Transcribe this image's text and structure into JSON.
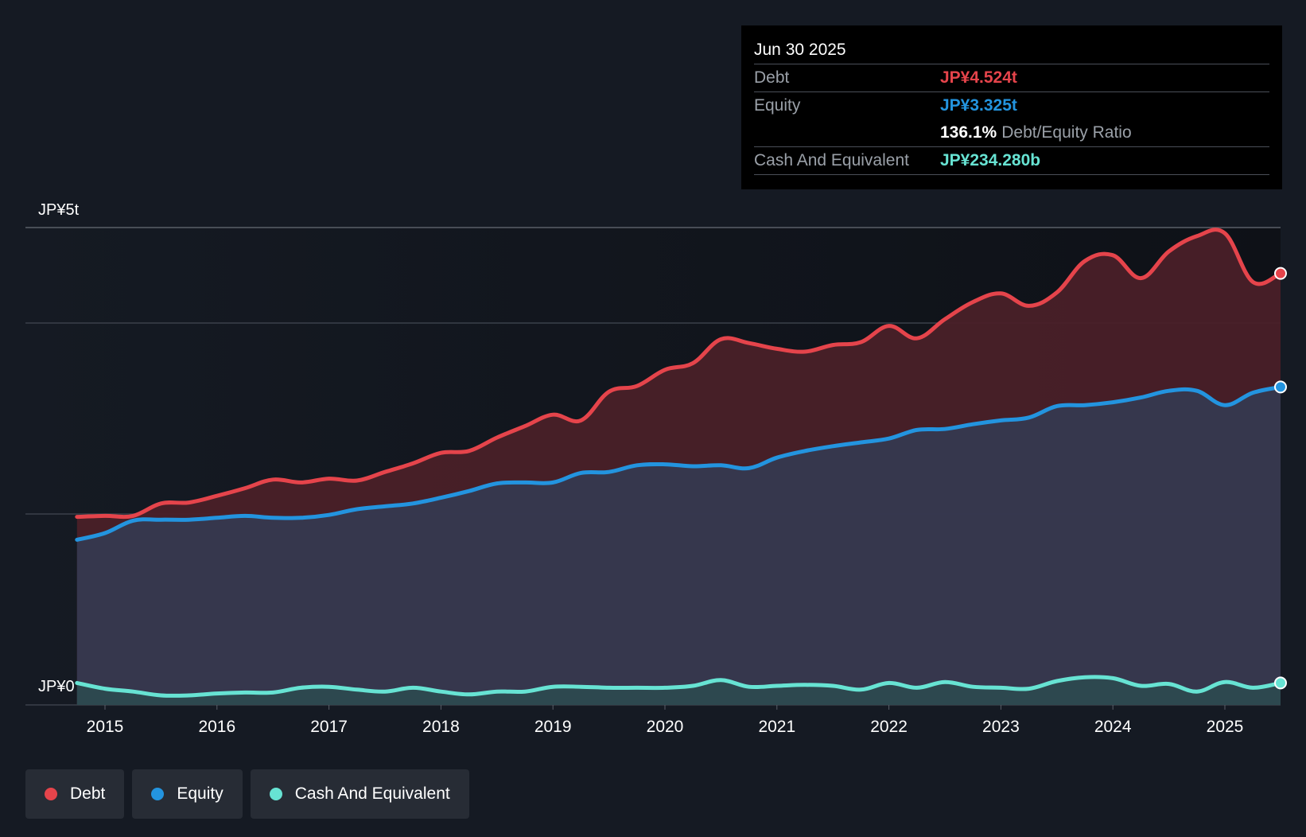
{
  "colors": {
    "debt": "#e5444b",
    "equity": "#2394df",
    "cash": "#67e3d3",
    "debt_fill": "#4a2028",
    "equity_fill": "#343a52",
    "cash_fill": "#2b4b50",
    "grid": "#3b404a"
  },
  "tooltip": {
    "date": "Jun 30 2025",
    "debt_label": "Debt",
    "debt_value": "JP¥4.524t",
    "equity_label": "Equity",
    "equity_value": "JP¥3.325t",
    "ratio_value": "136.1%",
    "ratio_label": "Debt/Equity Ratio",
    "cash_label": "Cash And Equivalent",
    "cash_value": "JP¥234.280b"
  },
  "legend": {
    "items": [
      {
        "label": "Debt",
        "icon": "dot-icon",
        "color": "#e5444b"
      },
      {
        "label": "Equity",
        "icon": "dot-icon",
        "color": "#2394df"
      },
      {
        "label": "Cash And Equivalent",
        "icon": "dot-icon",
        "color": "#67e3d3"
      }
    ]
  },
  "chart_data": {
    "type": "area",
    "title": "",
    "xlabel": "",
    "ylabel": "",
    "ylim": [
      0,
      5
    ],
    "y_unit": "JP¥ trillion",
    "y_axis_labels": {
      "top": "JP¥5t",
      "bottom": "JP¥0"
    },
    "grid": true,
    "x_tick_labels": [
      "2015",
      "2016",
      "2017",
      "2018",
      "2019",
      "2020",
      "2021",
      "2022",
      "2023",
      "2024",
      "2025"
    ],
    "x_range": [
      2014.3,
      2025.5
    ],
    "series": [
      {
        "name": "Debt",
        "x": [
          2014.75,
          2015.0,
          2015.25,
          2015.5,
          2015.75,
          2016.0,
          2016.25,
          2016.5,
          2016.75,
          2017.0,
          2017.25,
          2017.5,
          2017.75,
          2018.0,
          2018.25,
          2018.5,
          2018.75,
          2019.0,
          2019.25,
          2019.5,
          2019.75,
          2020.0,
          2020.25,
          2020.5,
          2020.75,
          2021.0,
          2021.25,
          2021.5,
          2021.75,
          2022.0,
          2022.25,
          2022.5,
          2022.75,
          2023.0,
          2023.25,
          2023.5,
          2023.75,
          2024.0,
          2024.25,
          2024.5,
          2024.75,
          2025.0,
          2025.25,
          2025.5
        ],
        "values": [
          1.97,
          1.98,
          1.98,
          2.11,
          2.12,
          2.19,
          2.27,
          2.36,
          2.33,
          2.37,
          2.35,
          2.44,
          2.53,
          2.64,
          2.66,
          2.8,
          2.92,
          3.04,
          2.98,
          3.28,
          3.34,
          3.51,
          3.58,
          3.83,
          3.79,
          3.73,
          3.7,
          3.77,
          3.8,
          3.97,
          3.84,
          4.04,
          4.22,
          4.31,
          4.18,
          4.32,
          4.65,
          4.71,
          4.47,
          4.75,
          4.91,
          4.94,
          4.43,
          4.52
        ]
      },
      {
        "name": "Equity",
        "x": [
          2014.75,
          2015.0,
          2015.25,
          2015.5,
          2015.75,
          2016.0,
          2016.25,
          2016.5,
          2016.75,
          2017.0,
          2017.25,
          2017.5,
          2017.75,
          2018.0,
          2018.25,
          2018.5,
          2018.75,
          2019.0,
          2019.25,
          2019.5,
          2019.75,
          2020.0,
          2020.25,
          2020.5,
          2020.75,
          2021.0,
          2021.25,
          2021.5,
          2021.75,
          2022.0,
          2022.25,
          2022.5,
          2022.75,
          2023.0,
          2023.25,
          2023.5,
          2023.75,
          2024.0,
          2024.25,
          2024.5,
          2024.75,
          2025.0,
          2025.25,
          2025.5
        ],
        "values": [
          1.73,
          1.8,
          1.93,
          1.94,
          1.94,
          1.96,
          1.98,
          1.96,
          1.96,
          1.99,
          2.05,
          2.08,
          2.11,
          2.17,
          2.24,
          2.32,
          2.33,
          2.33,
          2.43,
          2.44,
          2.51,
          2.52,
          2.5,
          2.51,
          2.48,
          2.59,
          2.66,
          2.71,
          2.75,
          2.79,
          2.88,
          2.89,
          2.94,
          2.98,
          3.01,
          3.13,
          3.14,
          3.17,
          3.22,
          3.29,
          3.29,
          3.14,
          3.27,
          3.33
        ]
      },
      {
        "name": "Cash And Equivalent",
        "x": [
          2014.75,
          2015.0,
          2015.25,
          2015.5,
          2015.75,
          2016.0,
          2016.25,
          2016.5,
          2016.75,
          2017.0,
          2017.25,
          2017.5,
          2017.75,
          2018.0,
          2018.25,
          2018.5,
          2018.75,
          2019.0,
          2019.25,
          2019.5,
          2019.75,
          2020.0,
          2020.25,
          2020.5,
          2020.75,
          2021.0,
          2021.25,
          2021.5,
          2021.75,
          2022.0,
          2022.25,
          2022.5,
          2022.75,
          2023.0,
          2023.25,
          2023.5,
          2023.75,
          2024.0,
          2024.25,
          2024.5,
          2024.75,
          2025.0,
          2025.25,
          2025.5
        ],
        "values": [
          0.23,
          0.17,
          0.14,
          0.1,
          0.1,
          0.12,
          0.13,
          0.13,
          0.18,
          0.19,
          0.16,
          0.14,
          0.18,
          0.14,
          0.11,
          0.14,
          0.14,
          0.19,
          0.19,
          0.18,
          0.18,
          0.18,
          0.2,
          0.26,
          0.19,
          0.2,
          0.21,
          0.2,
          0.16,
          0.23,
          0.18,
          0.24,
          0.19,
          0.18,
          0.17,
          0.25,
          0.29,
          0.28,
          0.2,
          0.22,
          0.14,
          0.24,
          0.18,
          0.23
        ]
      }
    ]
  }
}
